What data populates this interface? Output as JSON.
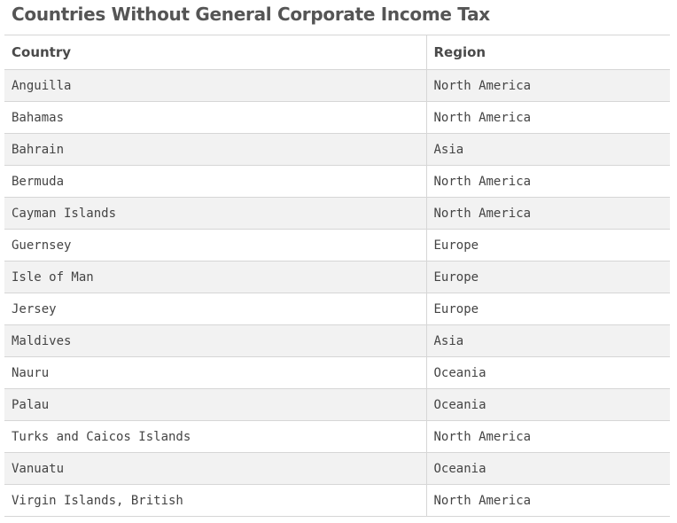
{
  "chart_data": {
    "type": "table",
    "title": "Countries Without General Corporate Income Tax",
    "columns": [
      "Country",
      "Region"
    ],
    "rows": [
      [
        "Anguilla",
        "North America"
      ],
      [
        "Bahamas",
        "North America"
      ],
      [
        "Bahrain",
        "Asia"
      ],
      [
        "Bermuda",
        "North America"
      ],
      [
        "Cayman Islands",
        "North America"
      ],
      [
        "Guernsey",
        "Europe"
      ],
      [
        "Isle of Man",
        "Europe"
      ],
      [
        "Jersey",
        "Europe"
      ],
      [
        "Maldives",
        "Asia"
      ],
      [
        "Nauru",
        "Oceania"
      ],
      [
        "Palau",
        "Oceania"
      ],
      [
        "Turks and Caicos Islands",
        "North America"
      ],
      [
        "Vanuatu",
        "Oceania"
      ],
      [
        "Virgin Islands, British",
        "North America"
      ]
    ]
  }
}
